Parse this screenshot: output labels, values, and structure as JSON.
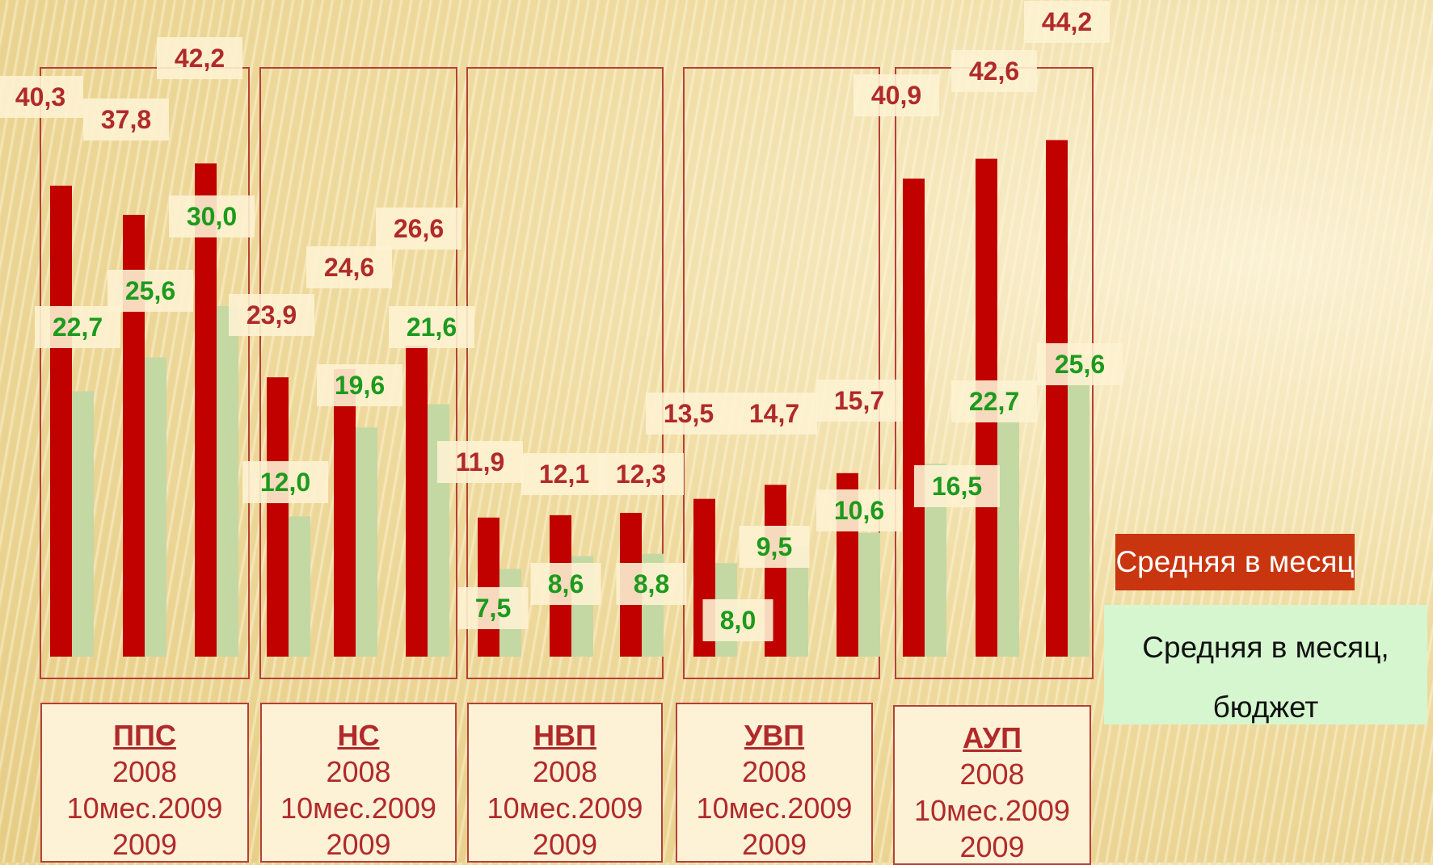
{
  "chart_data": {
    "type": "bar",
    "series": [
      {
        "name": "Средняя в месяц",
        "color": "#c10000",
        "values": [
          [
            40.3,
            37.8,
            42.2
          ],
          [
            23.9,
            24.6,
            26.6
          ],
          [
            11.9,
            12.1,
            12.3
          ],
          [
            13.5,
            14.7,
            15.7
          ],
          [
            40.9,
            42.6,
            44.2
          ]
        ],
        "labels": [
          [
            "40,3",
            "37,8",
            "42,2"
          ],
          [
            "23,9",
            "24,6",
            "26,6"
          ],
          [
            "11,9",
            "12,1",
            "12,3"
          ],
          [
            "13,5",
            "14,7",
            "15,7"
          ],
          [
            "40,9",
            "42,6",
            "44,2"
          ]
        ]
      },
      {
        "name": "Средняя в месяц, бюджет",
        "color": "#c4d8a4",
        "values": [
          [
            22.7,
            25.6,
            30.0
          ],
          [
            12.0,
            19.6,
            21.6
          ],
          [
            7.5,
            8.6,
            8.8
          ],
          [
            8.0,
            9.5,
            10.6
          ],
          [
            16.5,
            22.7,
            25.6
          ]
        ],
        "labels": [
          [
            "22,7",
            "25,6",
            "30,0"
          ],
          [
            "12,0",
            "19,6",
            "21,6"
          ],
          [
            "7,5",
            "8,6",
            "8,8"
          ],
          [
            "8,0",
            "9,5",
            "10,6"
          ],
          [
            "16,5",
            "22,7",
            "25,6"
          ]
        ]
      }
    ],
    "categories": [
      "ППС",
      "НС",
      "НВП",
      "УВП",
      "АУП"
    ],
    "periods": [
      "2008",
      "10мес.2009",
      "2009"
    ],
    "ylim": [
      0,
      45
    ]
  },
  "category_boxes": [
    {
      "name": "ППС",
      "y1": "2008",
      "y2": "10мес.2009",
      "y3": "2009"
    },
    {
      "name": "НС",
      "y1": "2008",
      "y2": "10мес.2009",
      "y3": "2009"
    },
    {
      "name": "НВП",
      "y1": "2008",
      "y2": "10мес.2009",
      "y3": "2009"
    },
    {
      "name": "УВП",
      "y1": "2008",
      "y2": "10мес.2009",
      "y3": "2009"
    },
    {
      "name": "АУП",
      "y1": "2008",
      "y2": "10мес.2009",
      "y3": "2009"
    }
  ],
  "legend": {
    "red": "Средняя в месяц",
    "green_line1": "Средняя в месяц,",
    "green_line2": "бюджет"
  }
}
